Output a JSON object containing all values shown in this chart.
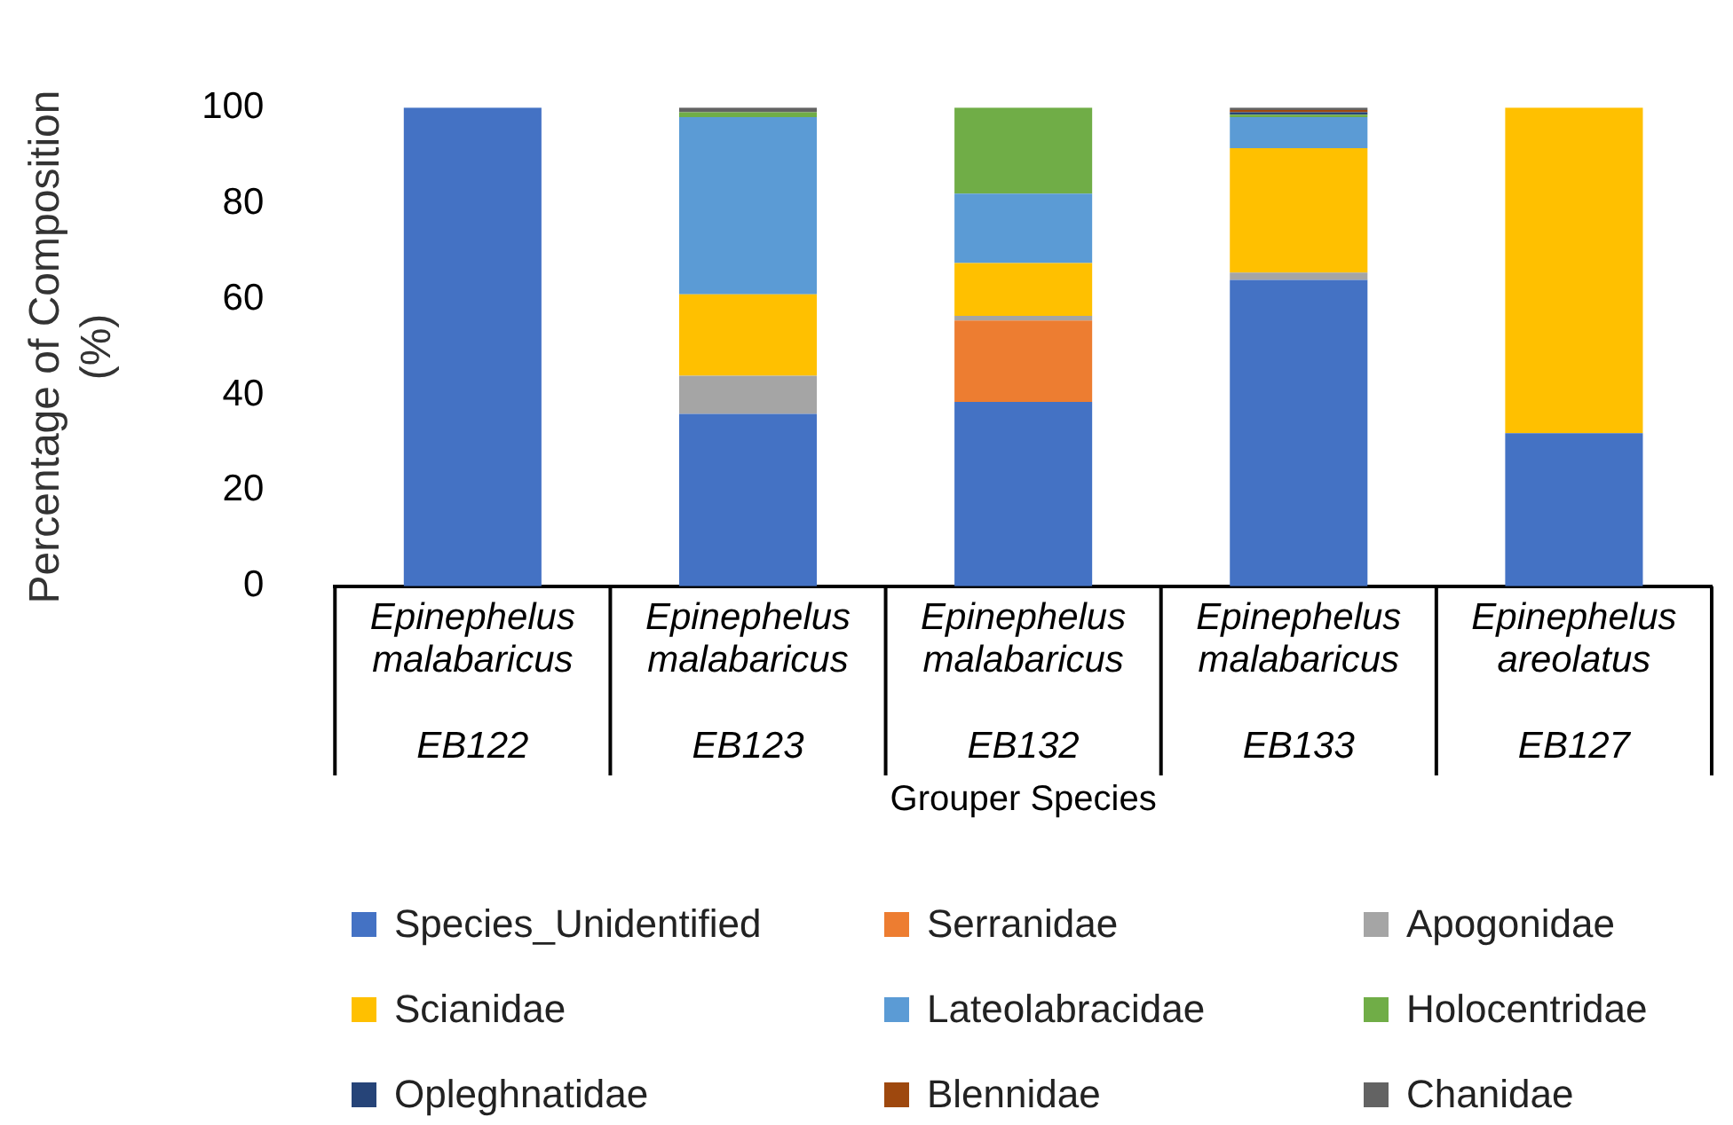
{
  "chart_data": {
    "type": "bar",
    "stacked": true,
    "ylabel": "Percentage of Composition\n(%)",
    "xlabel": "Grouper Species",
    "categories": [
      "Epinephelus\nmalabaricus\n\nEB122",
      "Epinephelus\nmalabaricus\n\nEB123",
      "Epinephelus\nmalabaricus\n\nEB132",
      "Epinephelus\nmalabaricus\n\nEB133",
      "Epinephelus\nareolatus\n\nEB127"
    ],
    "series": [
      {
        "name": "Species_Unidentified",
        "color": "#4472c4",
        "values": [
          100,
          36,
          38.5,
          64,
          32
        ]
      },
      {
        "name": "Serranidae",
        "color": "#ed7d31",
        "values": [
          0,
          0,
          17,
          0,
          0
        ]
      },
      {
        "name": "Apogonidae",
        "color": "#a5a5a5",
        "values": [
          0,
          8,
          1,
          1.5,
          0
        ]
      },
      {
        "name": "Scianidae",
        "color": "#ffc000",
        "values": [
          0,
          17,
          11,
          26,
          68
        ]
      },
      {
        "name": "Lateolabracidae",
        "color": "#5b9bd5",
        "values": [
          0,
          37,
          14.5,
          6.5,
          0
        ]
      },
      {
        "name": "Holocentridae",
        "color": "#70ad47",
        "values": [
          0,
          1,
          18,
          0.5,
          0
        ]
      },
      {
        "name": "Opleghnatidae",
        "color": "#264478",
        "values": [
          0,
          0,
          0,
          0.5,
          0
        ]
      },
      {
        "name": "Blennidae",
        "color": "#9e480e",
        "values": [
          0,
          0,
          0,
          0.5,
          0
        ]
      },
      {
        "name": "Chanidae",
        "color": "#636363",
        "values": [
          0,
          1,
          0,
          0.5,
          0
        ]
      }
    ],
    "ylim": [
      0,
      100
    ],
    "yticks": [
      0,
      20,
      40,
      60,
      80,
      100
    ],
    "legend": "bottom"
  }
}
